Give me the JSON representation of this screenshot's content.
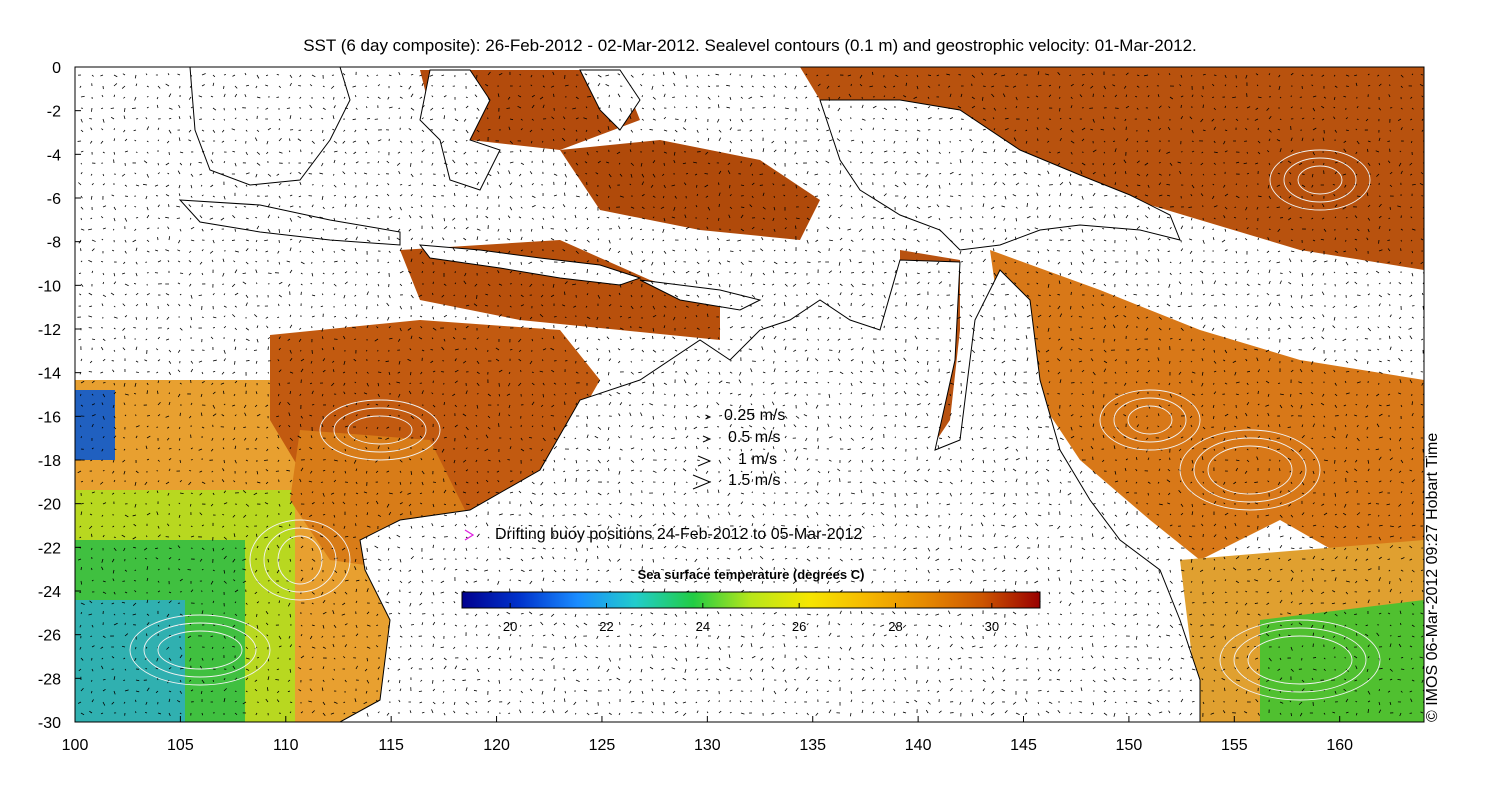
{
  "title": "SST (6 day composite): 26-Feb-2012 - 02-Mar-2012. Sealevel contours (0.1 m) and geostrophic velocity: 01-Mar-2012.",
  "credit": "© IMOS 06-Mar-2012 09:27 Hobart Time",
  "x_axis": {
    "ticks": [
      "100",
      "105",
      "110",
      "115",
      "120",
      "125",
      "130",
      "135",
      "140",
      "145",
      "150",
      "155",
      "160"
    ],
    "range": [
      100,
      164
    ]
  },
  "y_axis": {
    "ticks": [
      "0",
      "-2",
      "-4",
      "-6",
      "-8",
      "-10",
      "-12",
      "-14",
      "-16",
      "-18",
      "-20",
      "-22",
      "-24",
      "-26",
      "-28",
      "-30"
    ],
    "range": [
      -30,
      0
    ]
  },
  "velocity_legend": [
    {
      "label": "0.25 m/s",
      "speed": 0.25
    },
    {
      "label": "0.5 m/s",
      "speed": 0.5
    },
    {
      "label": "1 m/s",
      "speed": 1
    },
    {
      "label": "1.5 m/s",
      "speed": 1.5
    }
  ],
  "buoy_legend": {
    "label": "Drifting buoy positions 24-Feb-2012 to 05-Mar-2012",
    "color": "#e020e0"
  },
  "colorbar": {
    "title": "Sea surface temperature (degrees C)",
    "ticks": [
      "20",
      "22",
      "24",
      "26",
      "28",
      "30"
    ],
    "range": [
      19,
      31
    ],
    "colors": [
      "#00008f",
      "#0033cc",
      "#1a8cff",
      "#22cccc",
      "#22cc44",
      "#b8e61a",
      "#f5e600",
      "#f5b800",
      "#e68a00",
      "#cc5500",
      "#990000"
    ]
  },
  "palette": {
    "land": "#ffffff",
    "coast": "#000000",
    "warm": "#c8560f",
    "hot": "#a83a08",
    "mid": "#e8901a",
    "yellow": "#f0c020",
    "green": "#30c030",
    "cyan": "#20b0c8"
  }
}
